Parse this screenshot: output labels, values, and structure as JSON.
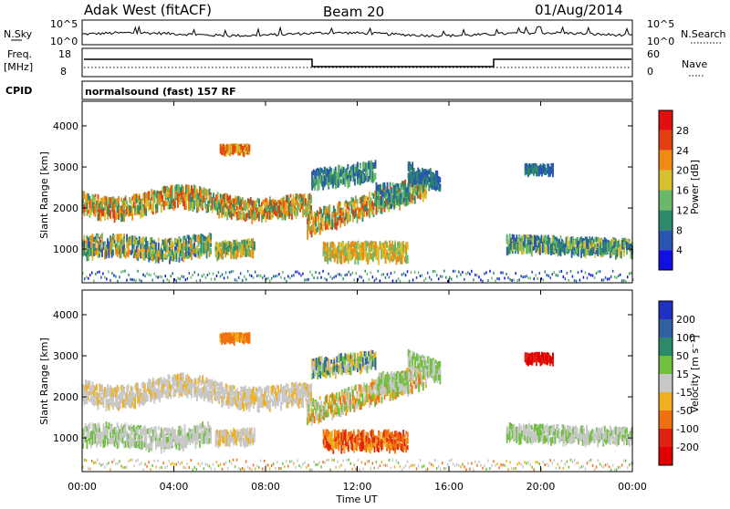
{
  "header": {
    "station": "Adak West (fitACF)",
    "beam": "Beam 20",
    "date": "01/Aug/2014"
  },
  "top_panels": {
    "nsky_label": "N.Sky",
    "nsky_ticks": [
      "10^5",
      "10^0"
    ],
    "nsearch_label": "N.Search",
    "nsearch_ticks": [
      "10^5",
      "10^0"
    ],
    "freq_label": "Freq.",
    "freq_unit": "[MHz]",
    "freq_ticks": [
      "18",
      "8"
    ],
    "nave_label": "Nave",
    "nave_ticks": [
      "60",
      "0"
    ],
    "cpid_label": "CPID",
    "cpid_text": "normalsound (fast) 157 RF"
  },
  "chart_data": [
    {
      "type": "heatmap",
      "name": "power-panel",
      "ylabel": "Slant Range [km]",
      "xlabel": "",
      "xlim": [
        "00:00",
        "24:00"
      ],
      "ylim": [
        180,
        4600
      ],
      "y_ticks": [
        1000,
        2000,
        3000,
        4000
      ],
      "colorbar": {
        "label": "Power [dB]",
        "ticks": [
          "4",
          "8",
          "12",
          "16",
          "20",
          "24",
          "28"
        ],
        "colors": [
          "#1010e0",
          "#2a55b0",
          "#2c8a6a",
          "#6ab86a",
          "#d8c030",
          "#f08a10",
          "#e04010",
          "#e01010"
        ]
      },
      "echo_regions": [
        {
          "t_start": 0.0,
          "t_end": 10.0,
          "range_center": 2100,
          "note": "band"
        },
        {
          "t_start": 0.0,
          "t_end": 5.6,
          "range_center": 1050,
          "note": "band"
        },
        {
          "t_start": 10.0,
          "t_end": 15.0,
          "range_center": 1800,
          "note": "band"
        },
        {
          "t_start": 18.5,
          "t_end": 24.0,
          "range_center": 1100,
          "note": "band"
        }
      ]
    },
    {
      "type": "heatmap",
      "name": "velocity-panel",
      "ylabel": "Slant Range [km]",
      "xlabel": "Time UT",
      "xlim": [
        "00:00",
        "24:00"
      ],
      "ylim": [
        180,
        4600
      ],
      "x_ticks": [
        "00:00",
        "04:00",
        "08:00",
        "12:00",
        "16:00",
        "20:00",
        "00:00"
      ],
      "y_ticks": [
        1000,
        2000,
        3000,
        4000
      ],
      "colorbar": {
        "label": "Velocity [m s⁻¹]",
        "ticks": [
          "200",
          "100",
          "50",
          "15",
          "-15",
          "-50",
          "-100",
          "-200"
        ],
        "colors": [
          "#2030c0",
          "#3060a0",
          "#2a8a6a",
          "#70c040",
          "#c8c8c8",
          "#f0b020",
          "#f07010",
          "#e02010",
          "#e00000"
        ]
      }
    }
  ]
}
